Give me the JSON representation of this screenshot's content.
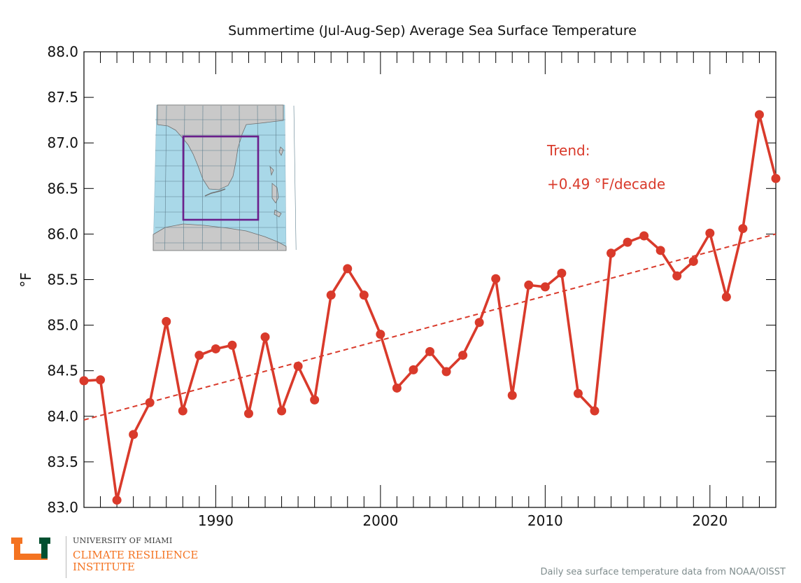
{
  "colors": {
    "series": "#d93a2b",
    "trend": "#d93a2b",
    "axis": "#000000",
    "box": "#6b1f8c",
    "ocean": "#a9d8e8",
    "land": "#c9c9c9",
    "logo_orange": "#f47321",
    "logo_green": "#005030"
  },
  "chart_data": {
    "type": "line",
    "title": "Summertime (Jul-Aug-Sep) Average Sea Surface Temperature",
    "xlabel": "",
    "ylabel": "°F",
    "xlim": [
      1982,
      2024
    ],
    "ylim": [
      83.0,
      88.0
    ],
    "x_ticks": [
      1990,
      2000,
      2010,
      2020
    ],
    "y_ticks": [
      "83.0",
      "83.5",
      "84.0",
      "84.5",
      "85.0",
      "85.5",
      "86.0",
      "86.5",
      "87.0",
      "87.5",
      "88.0"
    ],
    "grid": false,
    "legend": "none",
    "series": [
      {
        "x": [
          1982,
          1983,
          1984,
          1985,
          1986,
          1987,
          1988,
          1989,
          1990,
          1991,
          1992,
          1993,
          1994,
          1995,
          1996,
          1997,
          1998,
          1999,
          2000,
          2001,
          2002,
          2003,
          2004,
          2005,
          2006,
          2007,
          2008,
          2009,
          2010,
          2011,
          2012,
          2013,
          2014,
          2015,
          2016,
          2017,
          2018,
          2019,
          2020,
          2021,
          2022,
          2023,
          2024
        ],
        "y": [
          84.39,
          84.4,
          83.08,
          83.8,
          84.15,
          85.04,
          84.06,
          84.67,
          84.74,
          84.78,
          84.03,
          84.87,
          84.06,
          84.55,
          84.18,
          85.33,
          85.62,
          85.33,
          84.9,
          84.31,
          84.51,
          84.71,
          84.49,
          84.67,
          85.03,
          85.51,
          84.23,
          85.44,
          85.42,
          85.57,
          84.25,
          84.06,
          85.79,
          85.91,
          85.98,
          85.82,
          85.54,
          85.7,
          86.01,
          85.31,
          86.06,
          87.31,
          86.61
        ]
      }
    ],
    "trend": {
      "start": [
        1982,
        83.96
      ],
      "end": [
        2024,
        86.0
      ],
      "style": "dashed"
    },
    "annotations": {
      "trend_label": "Trend:",
      "trend_value": "+0.49 °F/decade"
    }
  },
  "branding": {
    "org_name": "UNIVERSITY OF MIAMI",
    "institute_line1": "CLIMATE RESILIENCE",
    "institute_line2": "INSTITUTE"
  },
  "source_note": "Daily sea surface temperature data from NOAA/OISST"
}
